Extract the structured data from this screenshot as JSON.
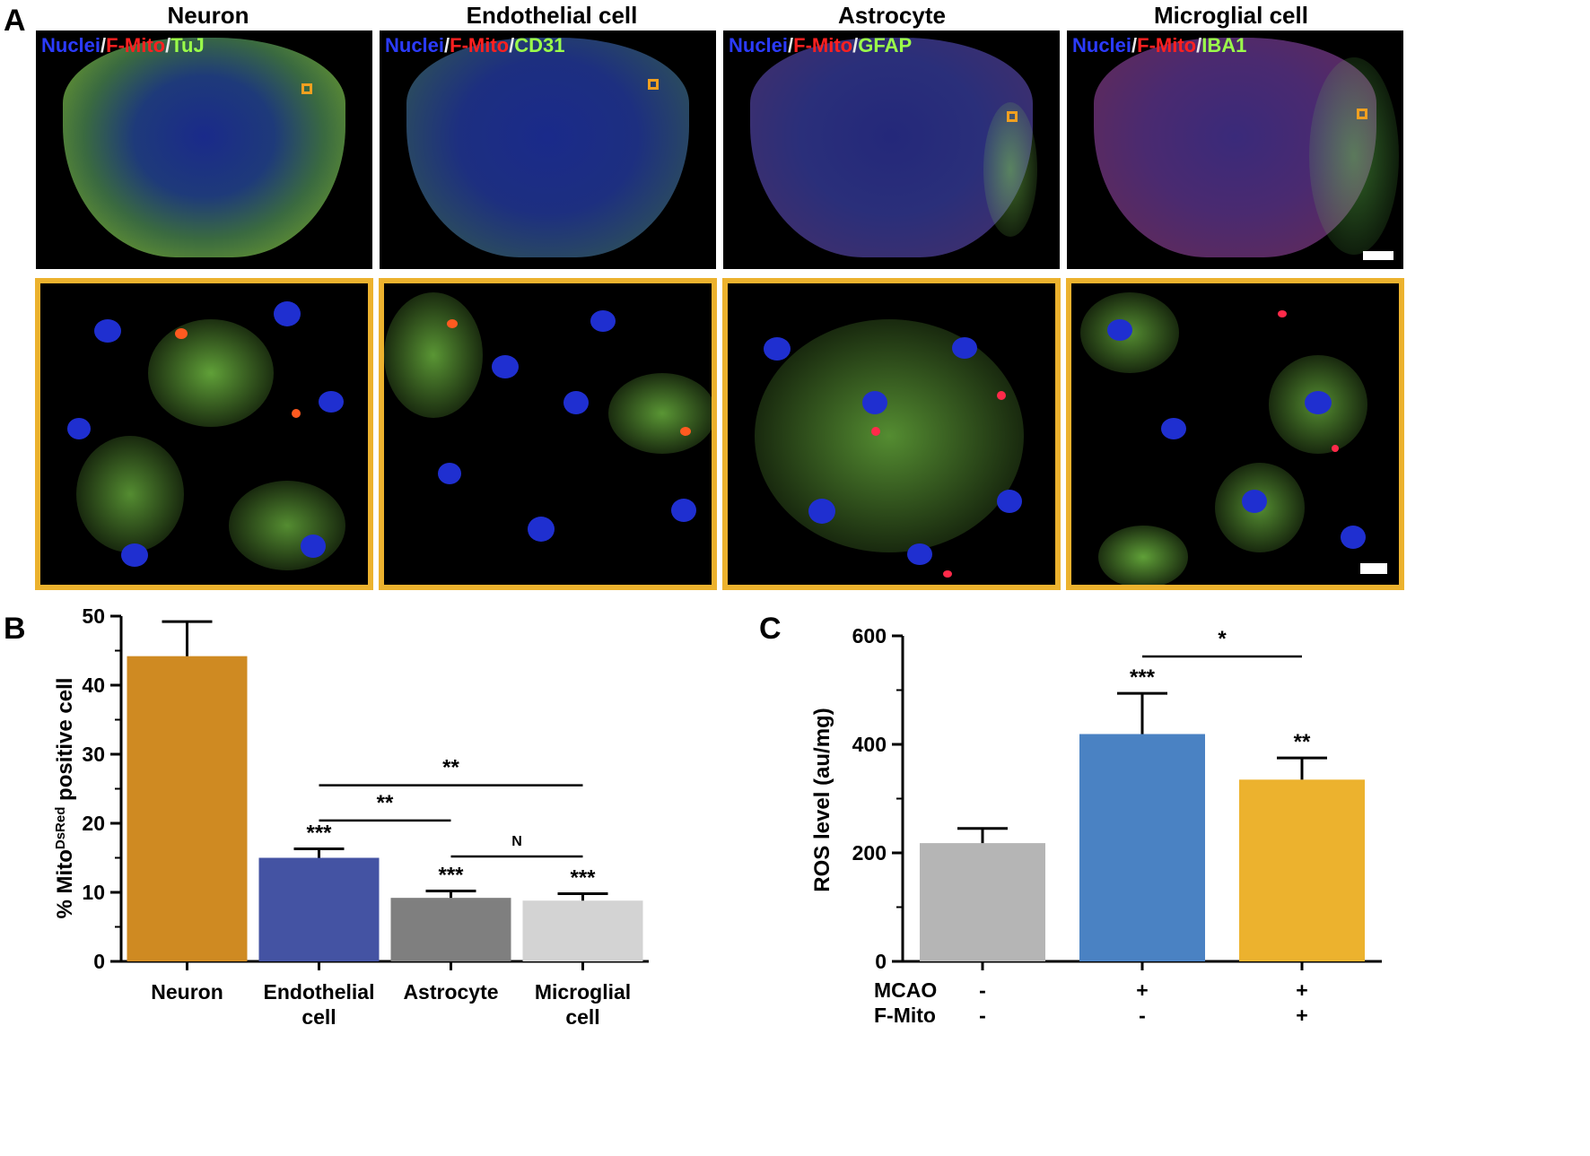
{
  "panel_labels": {
    "a": "A",
    "b": "B",
    "c": "C"
  },
  "panel_a": {
    "columns": [
      {
        "title": "Neuron",
        "stain": {
          "nuclei": "Nuclei",
          "sep1": "/",
          "fmito": "F-Mito",
          "sep2": "/",
          "marker": "TuJ"
        }
      },
      {
        "title": "Endothelial cell",
        "stain": {
          "nuclei": "Nuclei",
          "sep1": "/",
          "fmito": "F-Mito",
          "sep2": "/",
          "marker": "CD31"
        }
      },
      {
        "title": "Astrocyte",
        "stain": {
          "nuclei": "Nuclei",
          "sep1": "/",
          "fmito": "F-Mito",
          "sep2": "/",
          "marker": "GFAP"
        }
      },
      {
        "title": "Microglial cell",
        "stain": {
          "nuclei": "Nuclei",
          "sep1": "/",
          "fmito": "F-Mito",
          "sep2": "/",
          "marker": "IBA1"
        }
      }
    ],
    "colors": {
      "nuclei": "#2b3bff",
      "fmito": "#ff2020",
      "marker": "#9bff4a",
      "roi": "#f0a020",
      "zoom_border": "#ecb22e"
    }
  },
  "chart_data": [
    {
      "type": "bar",
      "panel": "B",
      "categories": [
        "Neuron",
        "Endothelial\ncell",
        "Astrocyte",
        "Microglial\ncell"
      ],
      "values": [
        44.2,
        15.0,
        9.2,
        8.8
      ],
      "errors": [
        5.0,
        1.3,
        1.0,
        1.0
      ],
      "colors": [
        "#cf8a22",
        "#4453a3",
        "#7f7f7f",
        "#d3d3d3"
      ],
      "bar_annotations": [
        "",
        "***",
        "***",
        "***"
      ],
      "ylabel": "% Mito",
      "ylabel_super": "DsRed",
      "ylabel_suffix": " positive cell",
      "ylim": [
        0,
        50
      ],
      "yticks": [
        0,
        10,
        20,
        30,
        40,
        50
      ],
      "comparisons": [
        {
          "from": 1,
          "to": 3,
          "label": "**",
          "y": 25.5
        },
        {
          "from": 1,
          "to": 2,
          "label": "**",
          "y": 20.4
        },
        {
          "from": 2,
          "to": 3,
          "label": "N",
          "y": 15.2
        }
      ]
    },
    {
      "type": "bar",
      "panel": "C",
      "categories": [
        "",
        "",
        ""
      ],
      "values": [
        218,
        419,
        335
      ],
      "errors": [
        27,
        75,
        40
      ],
      "colors": [
        "#b5b5b5",
        "#4a82c3",
        "#ecb22e"
      ],
      "bar_annotations": [
        "",
        "***",
        "**"
      ],
      "ylabel": "ROS level (au/mg)",
      "ylim": [
        0,
        600
      ],
      "yticks": [
        0,
        200,
        400,
        600
      ],
      "comparisons": [
        {
          "from": 1,
          "to": 2,
          "label": "*",
          "y": 562
        }
      ],
      "condition_rows": [
        {
          "label": "MCAO",
          "values": [
            "-",
            "+",
            "+"
          ]
        },
        {
          "label": "F-Mito",
          "values": [
            "-",
            "-",
            "+"
          ]
        }
      ]
    }
  ]
}
